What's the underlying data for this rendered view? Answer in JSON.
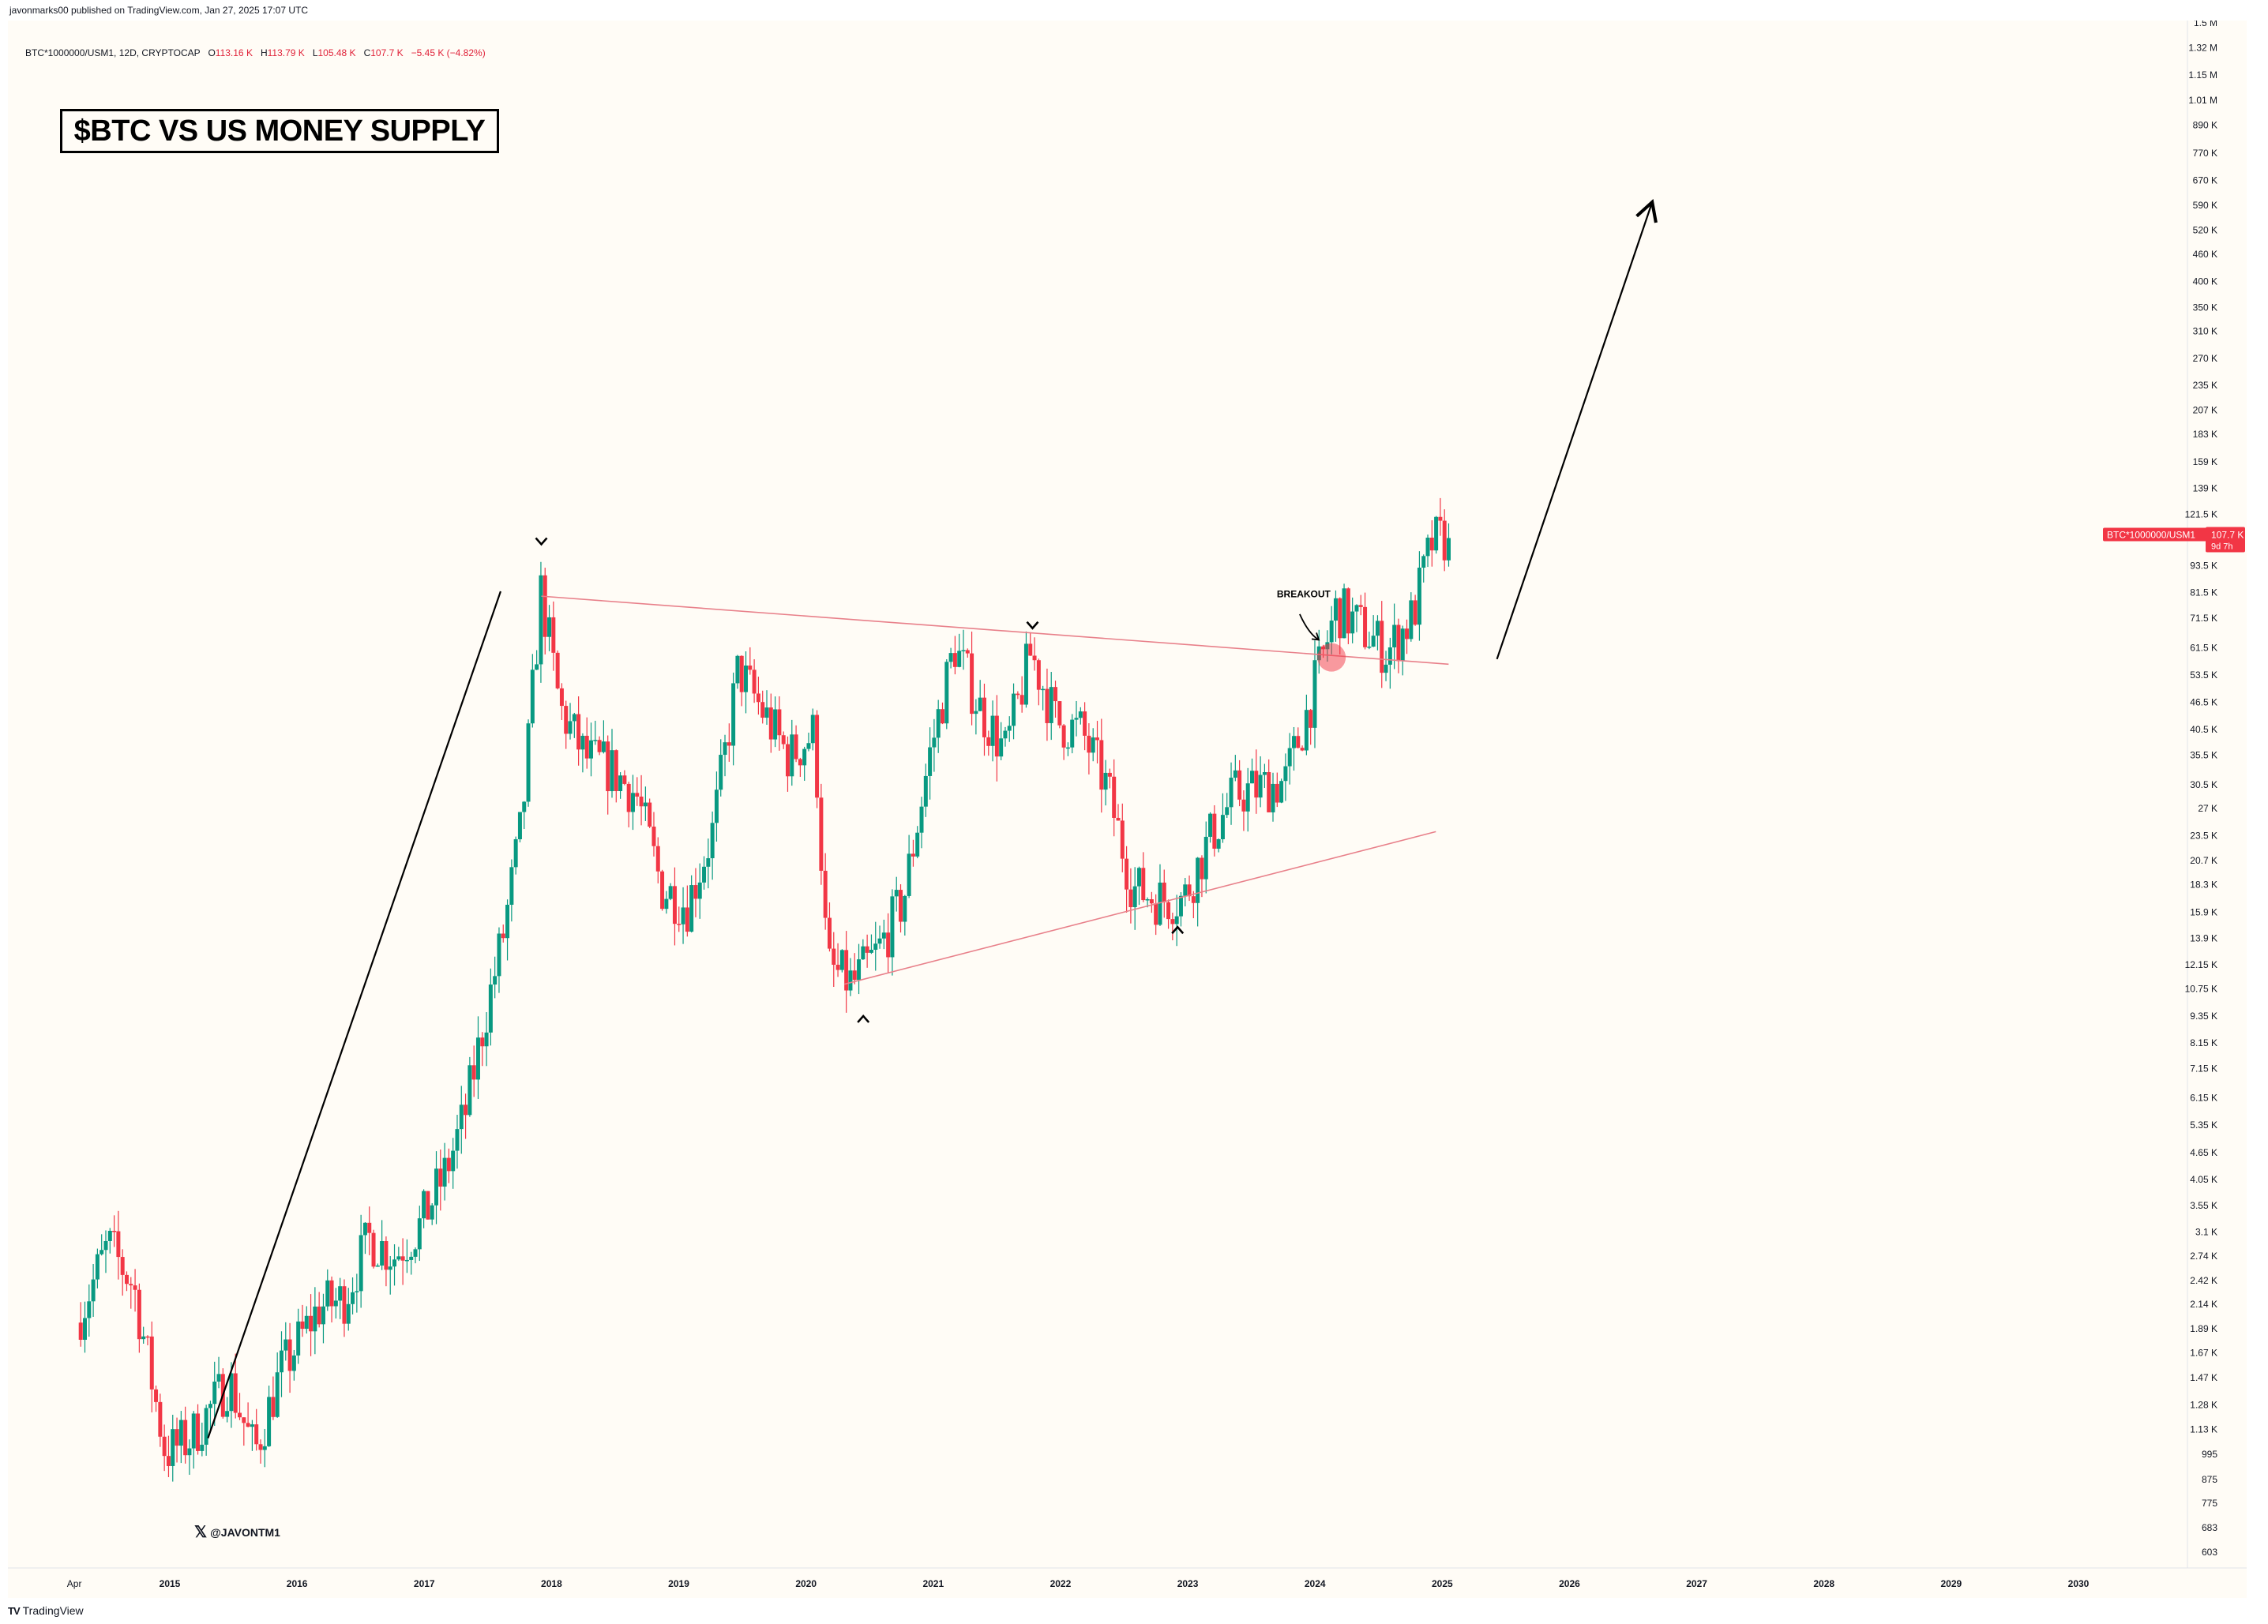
{
  "header": {
    "publisher": "javonmarks00 published on TradingView.com, Jan 27, 2025 17:07 UTC"
  },
  "legend": {
    "symbol": "BTC*1000000/USM1, 12D, CRYPTOCAP",
    "open_label": "O",
    "open": "113.16 K",
    "high_label": "H",
    "high": "113.79 K",
    "low_label": "L",
    "low": "105.48 K",
    "close_label": "C",
    "close": "107.7 K",
    "change": "−5.45 K (−4.82%)"
  },
  "annotations": {
    "title": "$BTC VS US MONEY SUPPLY",
    "breakout": "BREAKOUT",
    "watermark_icon": "x-logo-icon",
    "watermark": "@JAVONTM1"
  },
  "footer": {
    "logo_icon": "tradingview-logo-icon",
    "logo": "TradingView"
  },
  "price_tag": {
    "symbol": "BTC*1000000/USM1",
    "value": "107.7 K",
    "countdown": "9d 7h",
    "color": "#f23645"
  },
  "colors": {
    "up": "#089981",
    "down": "#f23645",
    "trendline": "#e8808a",
    "background": "#fffcf6"
  },
  "chart_data": {
    "type": "candlestick",
    "scale": "log",
    "x_ticks": [
      "Apr",
      "2015",
      "2016",
      "2017",
      "2018",
      "2019",
      "2020",
      "2021",
      "2022",
      "2023",
      "2024",
      "2025",
      "2026",
      "2027",
      "2028",
      "2029",
      "2030"
    ],
    "y_ticks": [
      "1.5 M",
      "1.32 M",
      "1.15 M",
      "1.01 M",
      "890 K",
      "770 K",
      "670 K",
      "590 K",
      "520 K",
      "460 K",
      "400 K",
      "350 K",
      "310 K",
      "270 K",
      "235 K",
      "207 K",
      "183 K",
      "159 K",
      "139 K",
      "121.5 K",
      "93.5 K",
      "81.5 K",
      "71.5 K",
      "61.5 K",
      "53.5 K",
      "46.5 K",
      "40.5 K",
      "35.5 K",
      "30.5 K",
      "27 K",
      "23.5 K",
      "20.7 K",
      "18.3 K",
      "15.9 K",
      "13.9 K",
      "12.15 K",
      "10.75 K",
      "9.35 K",
      "8.15 K",
      "7.15 K",
      "6.15 K",
      "5.35 K",
      "4.65 K",
      "4.05 K",
      "3.55 K",
      "3.1 K",
      "2.74 K",
      "2.42 K",
      "2.14 K",
      "1.89 K",
      "1.67 K",
      "1.47 K",
      "1.28 K",
      "1.13 K",
      "995",
      "875",
      "775",
      "683",
      "603"
    ],
    "path": [
      [
        2014.3,
        1950
      ],
      [
        2014.55,
        2900
      ],
      [
        2014.75,
        2350
      ],
      [
        2015.0,
        1000
      ],
      [
        2015.2,
        1080
      ],
      [
        2015.5,
        1450
      ],
      [
        2015.7,
        1000
      ],
      [
        2015.9,
        1500
      ],
      [
        2016.2,
        2100
      ],
      [
        2016.4,
        2200
      ],
      [
        2016.6,
        3000
      ],
      [
        2016.8,
        2750
      ],
      [
        2017.0,
        3200
      ],
      [
        2017.2,
        4200
      ],
      [
        2017.35,
        5600
      ],
      [
        2017.5,
        9000
      ],
      [
        2017.65,
        14000
      ],
      [
        2017.8,
        25000
      ],
      [
        2017.95,
        82000
      ],
      [
        2018.1,
        45000
      ],
      [
        2018.3,
        35000
      ],
      [
        2018.5,
        33000
      ],
      [
        2018.7,
        29000
      ],
      [
        2018.9,
        18000
      ],
      [
        2019.1,
        16500
      ],
      [
        2019.3,
        24000
      ],
      [
        2019.5,
        55000
      ],
      [
        2019.7,
        44000
      ],
      [
        2019.9,
        35000
      ],
      [
        2020.1,
        40000
      ],
      [
        2020.2,
        12000
      ],
      [
        2020.4,
        11000
      ],
      [
        2020.6,
        13000
      ],
      [
        2020.8,
        17000
      ],
      [
        2021.0,
        35000
      ],
      [
        2021.2,
        62000
      ],
      [
        2021.4,
        45000
      ],
      [
        2021.6,
        36000
      ],
      [
        2021.8,
        60000
      ],
      [
        2022.0,
        42000
      ],
      [
        2022.2,
        40000
      ],
      [
        2022.4,
        30000
      ],
      [
        2022.6,
        18000
      ],
      [
        2022.8,
        17000
      ],
      [
        2023.0,
        17000
      ],
      [
        2023.2,
        23000
      ],
      [
        2023.4,
        29000
      ],
      [
        2023.6,
        30000
      ],
      [
        2023.8,
        31000
      ],
      [
        2024.0,
        47000
      ],
      [
        2024.2,
        75000
      ],
      [
        2024.4,
        68000
      ],
      [
        2024.6,
        60000
      ],
      [
        2024.8,
        72000
      ],
      [
        2024.95,
        105000
      ],
      [
        2025.08,
        107700
      ]
    ],
    "last_close": 107700,
    "trendlines": [
      {
        "name": "upper",
        "from": [
          2017.92,
          80000
        ],
        "to": [
          2025.05,
          56500
        ]
      },
      {
        "name": "lower",
        "from": [
          2020.3,
          11000
        ],
        "to": [
          2024.95,
          24000
        ]
      }
    ]
  }
}
